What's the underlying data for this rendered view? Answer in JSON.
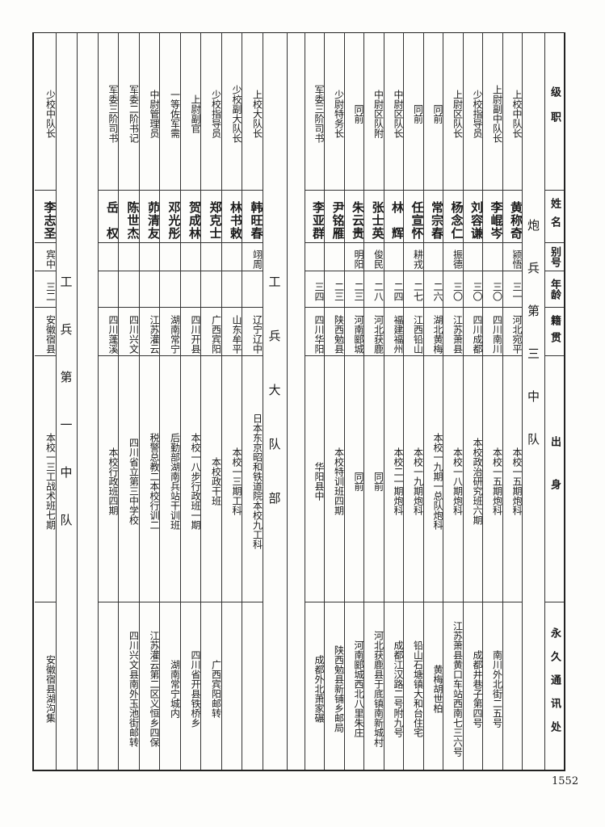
{
  "headers": [
    "级职",
    "姓名",
    "别号",
    "年龄",
    "籍贯",
    "出身",
    "永久通讯处"
  ],
  "sections": [
    {
      "title": "炮兵第三中队",
      "members": [
        {
          "rank": "上校中队长",
          "name": "黄称奇",
          "alias": "颍悟",
          "age": "三一",
          "native": "河北宛平",
          "origin": "本校一五期炮科",
          "address": ""
        },
        {
          "rank": "上尉副中队长",
          "name": "李崐岑",
          "alias": "",
          "age": "三〇",
          "native": "四川南川",
          "origin": "本校一五期炮科",
          "address": "南川外北街二五号"
        },
        {
          "rank": "少校指导员",
          "name": "刘容谦",
          "alias": "",
          "age": "三〇",
          "native": "四川成都",
          "origin": "本校政治研究班六期",
          "address": "成都井巷子第四号"
        },
        {
          "rank": "上尉区队长",
          "name": "杨念仁",
          "alias": "振德",
          "age": "三〇",
          "native": "江苏萧县",
          "origin": "本校一八期炮科",
          "address": "江苏萧县黄口车站西南七三六号"
        },
        {
          "rank": "同前",
          "name": "常宗春",
          "alias": "",
          "age": "二六",
          "native": "湖北黄梅",
          "origin": "本校一九期一总队炮科",
          "address": "黄梅胡世柏"
        },
        {
          "rank": "同前",
          "name": "任宣怀",
          "alias": "耕戎",
          "age": "二七",
          "native": "江西铅山",
          "origin": "本校一九期炮科",
          "address": "铅山石塘镇大和台住宅"
        },
        {
          "rank": "中尉区队长",
          "name": "林　辉",
          "alias": "",
          "age": "二四",
          "native": "福建福州",
          "origin": "本校二一期炮科",
          "address": "成都江汉路二号附九号"
        },
        {
          "rank": "中尉区队附",
          "name": "张士英",
          "alias": "俊民",
          "age": "二八",
          "native": "河北获鹿",
          "origin": "同前",
          "address": "河北获鹿县于底镇南新城村"
        },
        {
          "rank": "同前",
          "name": "朱云贵",
          "alias": "明阳",
          "age": "二三",
          "native": "河南郾城",
          "origin": "同前",
          "address": "河南郾城西北八里朱庄"
        },
        {
          "rank": "少尉特务长",
          "name": "尹铭雁",
          "alias": "",
          "age": "二三",
          "native": "陕西勉县",
          "origin": "本校特训班四期",
          "address": "陕西勉县新铺乡邮局"
        },
        {
          "rank": "军委三阶司书",
          "name": "李亚群",
          "alias": "",
          "age": "三四",
          "native": "四川华阳",
          "origin": "华阳县中",
          "address": "成都外北萧家碾"
        }
      ]
    },
    {
      "title": "工兵大队部",
      "members": [
        {
          "rank": "上校大队长",
          "name": "韩旺春",
          "alias": "翊周",
          "age": "",
          "native": "辽宁辽中",
          "origin": "日本东京昭和铁道院本校九工科",
          "address": ""
        },
        {
          "rank": "少校副大队长",
          "name": "林书敕",
          "alias": "",
          "age": "",
          "native": "山东牟平",
          "origin": "本校一三期工科",
          "address": ""
        },
        {
          "rank": "少校指导员",
          "name": "郑克士",
          "alias": "",
          "age": "",
          "native": "广西宾阳",
          "origin": "本校政干班",
          "address": "广西宾阳邮转"
        },
        {
          "rank": "上尉副官",
          "name": "贺成林",
          "alias": "",
          "age": "",
          "native": "四川开县",
          "origin": "本校一八步行政班一期",
          "address": "四川省开县铁桥乡"
        },
        {
          "rank": "一等佐军需",
          "name": "邓光彤",
          "alias": "",
          "age": "",
          "native": "湖南常宁",
          "origin": "后勤部湖南兵站干训班",
          "address": "湖南常宁城内"
        },
        {
          "rank": "中尉管理员",
          "name": "茆清友",
          "alias": "",
          "age": "",
          "native": "江苏灌云",
          "origin": "税警总教二本校行训二",
          "address": "江苏灌云第二区义恒乡四保"
        },
        {
          "rank": "军委二阶书记",
          "name": "陈世杰",
          "alias": "",
          "age": "",
          "native": "四川兴文",
          "origin": "四川省立第三中学校",
          "address": "四川兴文县南外玉池街邮转"
        },
        {
          "rank": "军委三阶司书",
          "name": "岳　权",
          "alias": "",
          "age": "",
          "native": "四川蓬溪",
          "origin": "本校行政班四期",
          "address": ""
        }
      ]
    },
    {
      "title": "工兵第一中队",
      "members": [
        {
          "rank": "少校中队长",
          "name": "李志圣",
          "alias": "宾中",
          "age": "三二",
          "native": "安徽宿县",
          "origin": "本校一三工战术班七期",
          "address": "安徽宿县湖沟集"
        }
      ]
    }
  ],
  "page_number": "1552"
}
